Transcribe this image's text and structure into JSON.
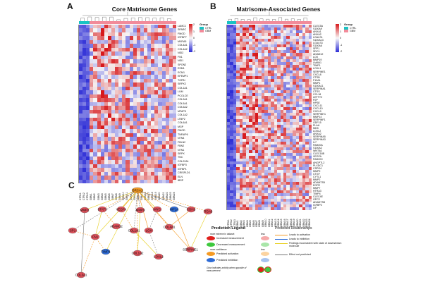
{
  "panels": {
    "A": {
      "letter": "A",
      "title": "Core Matrisome Genes",
      "genes": [
        "LAMC1",
        "SPARC",
        "FMOD",
        "IGFBP7",
        "MXRA5",
        "COL4A1",
        "COL4A2",
        "NID2",
        "FN1",
        "NID1",
        "SPON2",
        "ESM1",
        "ECM1",
        "EFEMP1",
        "TGFBI",
        "SRPX2",
        "COL1A1",
        "LUM",
        "PCOLCE",
        "COL3A1",
        "COL5A1",
        "COL5A2",
        "MFAP5",
        "COL1A2",
        "LTBP2",
        "COL6A1",
        "MGP",
        "FMOD",
        "TNFAIP6",
        "NTN4",
        "FBLN2",
        "FBN2",
        "NTN1",
        "SRPX",
        "TNC",
        "COL22A1",
        "IGFBP3",
        "IGFBP1",
        "CRISPLD1",
        "ELN",
        "IBSP"
      ],
      "samples": [
        "CTRL1",
        "CTRL2",
        "CTRL3",
        "GBM1",
        "GBM2",
        "GBM3",
        "GBM4",
        "GBM5",
        "GBM6",
        "GBM7",
        "GBM8",
        "GBM9",
        "GBM10",
        "GBM11",
        "GBM12",
        "GBM13",
        "GBM14",
        "GBM15",
        "GBM16",
        "GBM17",
        "GBM18",
        "GBM19",
        "GBM20",
        "GBM21",
        "GBM22",
        "GBM23",
        "GBM24"
      ],
      "scale_ticks": [
        "2",
        "1",
        "0",
        "-1",
        "-2"
      ],
      "legend": {
        "title": "Group",
        "items": [
          "CTRL",
          "GBM"
        ]
      }
    },
    "B": {
      "letter": "B",
      "title": "Matrisome-Associated Genes",
      "genes": [
        "CLEC5A",
        "S100A9",
        "ANXA1",
        "ANXA2",
        "LGALS1",
        "S100A13",
        "LGALS3",
        "S100A6",
        "SPP1",
        "SDC1",
        "ADAM12",
        "LOX",
        "MMP19",
        "LMAN1",
        "TIMP1",
        "LOXL1",
        "SERPINE1",
        "CXCL8",
        "CTSB",
        "F13A1",
        "MMP1",
        "S100A11",
        "SERPINA1",
        "CTSS",
        "CCL18",
        "LEFTY2",
        "P2P",
        "HPSE",
        "CXCL11",
        "CXCL10",
        "CXCL9",
        "SERPINH1",
        "MMP14",
        "SERPINF1",
        "GDF15",
        "PLAU",
        "MDK",
        "LOXL2",
        "ANXA2",
        "SERPINA5",
        "SERPINA3",
        "IL7",
        "FAM20A",
        "S100A2",
        "WNT5A",
        "CLEC18B",
        "VEGFA",
        "FAM20C",
        "ANGPTL2",
        "PLXDC1",
        "CSPG4",
        "MMP9",
        "CTGF",
        "CYTL1",
        "MMP2",
        "ADAMTS9",
        "EGFR",
        "MMP7",
        "HTRA3",
        "TIMP4",
        "CLEC4E",
        "GPC2",
        "ADAMTS8",
        "IGFBP2",
        "LIF"
      ],
      "samples": [
        "CTRL1",
        "CTRL2",
        "CTRL3",
        "GBM1",
        "GBM2",
        "GBM3",
        "GBM4",
        "GBM5",
        "GBM6",
        "GBM7",
        "GBM8",
        "GBM9",
        "GBM10",
        "GBM11",
        "GBM12",
        "GBM13",
        "GBM14",
        "GBM15",
        "GBM16",
        "GBM17",
        "GBM18",
        "GBM19",
        "GBM20",
        "GBM21",
        "GBM22",
        "GBM23",
        "GBM24"
      ],
      "scale_ticks": [
        "2",
        "1",
        "0",
        "-1",
        "-2"
      ],
      "legend": {
        "title": "Group",
        "items": [
          "CTRL",
          "GBM"
        ]
      }
    },
    "C": {
      "letter": "C",
      "nodes": [
        {
          "id": "brca",
          "label": "BRCA1",
          "kind": "orange"
        },
        {
          "id": "mmp2",
          "label": "MMP2",
          "kind": "red"
        },
        {
          "id": "stat3",
          "label": "STAT3",
          "kind": "red"
        },
        {
          "id": "vegfa",
          "label": "VEGFA",
          "kind": "red"
        },
        {
          "id": "mmp9",
          "label": "MMP9",
          "kind": "red"
        },
        {
          "id": "myc",
          "label": "MYC",
          "kind": "red"
        },
        {
          "id": "hif1a",
          "label": "HIF1A",
          "kind": "blue"
        },
        {
          "id": "cdh2",
          "label": "CDH2",
          "kind": "red"
        },
        {
          "id": "itga5",
          "label": "ITGA5",
          "kind": "red"
        },
        {
          "id": "sp1",
          "label": "SP1",
          "kind": "red"
        },
        {
          "id": "adam12",
          "label": "ADAM12",
          "kind": "red"
        },
        {
          "id": "fn1",
          "label": "FN1",
          "kind": "red"
        },
        {
          "id": "col1a1",
          "label": "COL1A1",
          "kind": "red"
        },
        {
          "id": "lox",
          "label": "LOX",
          "kind": "red"
        },
        {
          "id": "col4a1",
          "label": "COL4A1",
          "kind": "red"
        },
        {
          "id": "timp1",
          "label": "TIMP1",
          "kind": "blue"
        },
        {
          "id": "col1a2",
          "label": "COL1A2",
          "kind": "red"
        },
        {
          "id": "loxl2",
          "label": "LOXL2",
          "kind": "red"
        },
        {
          "id": "serpine1",
          "label": "SERPINE1",
          "kind": "red"
        },
        {
          "id": "col3a1",
          "label": "COL3A1",
          "kind": "red"
        }
      ],
      "legend": {
        "title": "Prediction Legend",
        "more_extreme": "more extreme in dataset",
        "less": "less",
        "increased": "Increased measurement",
        "decreased": "Decreased measurement",
        "more_confidence": "more confidence",
        "predicted_activation": "Predicted activation",
        "predicted_inhibition": "Predicted inhibition",
        "glow_note": "Glow indicates activity when opposite of measurement",
        "relationships_title": "Predicted Relationships",
        "rel_activation": "Leads to activation",
        "rel_inhibition": "Leads to inhibition",
        "rel_inconsistent": "Findings inconsistent with state of downstream molecule",
        "rel_not_predicted": "Effect not predicted"
      }
    }
  },
  "colors": {
    "high": "#d7191c",
    "mid": "#f7f7f7",
    "low": "#2c2cd6",
    "ctrl": "#19c3c3",
    "gbm": "#f28b9a",
    "orange": "#f59a23"
  }
}
